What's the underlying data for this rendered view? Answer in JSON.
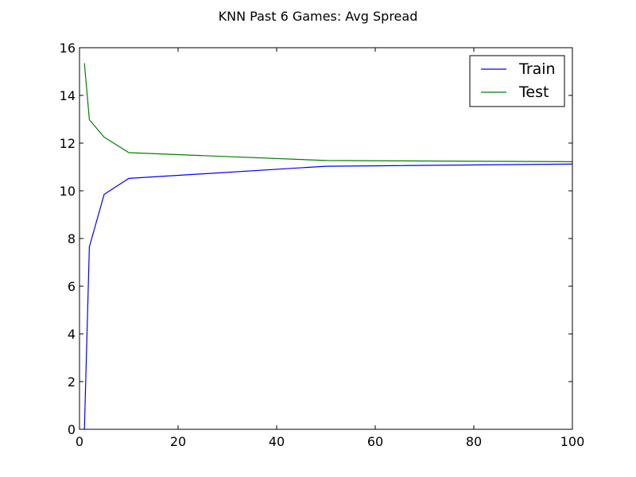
{
  "chart_data": {
    "type": "line",
    "title": "KNN Past 6 Games: Avg Spread",
    "xlabel": "",
    "ylabel": "",
    "xlim": [
      0,
      100
    ],
    "ylim": [
      0,
      16
    ],
    "x_ticks": [
      0,
      20,
      40,
      60,
      80,
      100
    ],
    "y_ticks": [
      0,
      2,
      4,
      6,
      8,
      10,
      12,
      14,
      16
    ],
    "x_tick_labels": [
      "0",
      "20",
      "40",
      "60",
      "80",
      "100"
    ],
    "y_tick_labels": [
      "0",
      "2",
      "4",
      "6",
      "8",
      "10",
      "12",
      "14",
      "16"
    ],
    "grid": false,
    "legend_position": "top-right",
    "series": [
      {
        "name": "Train",
        "color": "#0000ff",
        "x": [
          1,
          2,
          5,
          10,
          50,
          100
        ],
        "values": [
          0.0,
          7.65,
          9.85,
          10.52,
          11.03,
          11.12
        ]
      },
      {
        "name": "Test",
        "color": "#008000",
        "x": [
          1,
          2,
          5,
          10,
          50,
          100
        ],
        "values": [
          15.35,
          12.98,
          12.25,
          11.6,
          11.27,
          11.22
        ]
      }
    ]
  }
}
